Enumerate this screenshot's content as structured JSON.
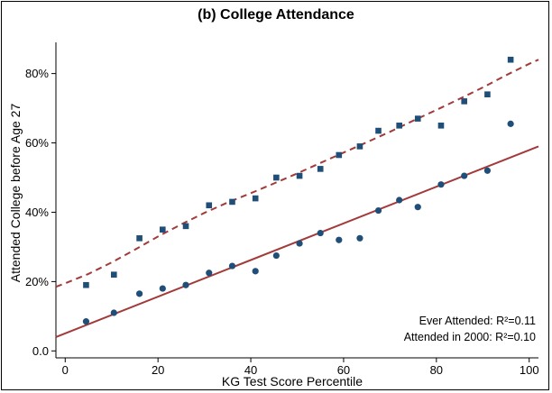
{
  "chart_data": {
    "type": "scatter",
    "title": "(b) College Attendance",
    "xlabel": "KG Test Score Percentile",
    "ylabel": "Attended College before Age 27",
    "xlim": [
      -2,
      102
    ],
    "ylim": [
      -0.02,
      0.89
    ],
    "xticks": [
      0,
      20,
      40,
      60,
      80,
      100
    ],
    "xtick_labels": [
      "0",
      "20",
      "40",
      "60",
      "80",
      "100"
    ],
    "yticks": [
      0.0,
      0.2,
      0.4,
      0.6,
      0.8
    ],
    "ytick_labels": [
      "0.0",
      "20%",
      "40%",
      "60%",
      "80%"
    ],
    "grid": false,
    "series": [
      {
        "marker": "square",
        "color": "#1f4e79",
        "x": [
          4.5,
          10.5,
          16,
          21,
          26,
          31,
          36,
          41,
          45.5,
          50.5,
          55,
          59,
          63.5,
          67.5,
          72,
          76,
          81,
          86,
          91,
          96
        ],
        "y": [
          0.19,
          0.22,
          0.325,
          0.35,
          0.36,
          0.42,
          0.43,
          0.44,
          0.5,
          0.505,
          0.525,
          0.565,
          0.59,
          0.635,
          0.65,
          0.67,
          0.65,
          0.72,
          0.74,
          0.84
        ]
      },
      {
        "marker": "circle",
        "color": "#1f4e79",
        "x": [
          4.5,
          10.5,
          16,
          21,
          26,
          31,
          36,
          41,
          45.5,
          50.5,
          55,
          59,
          63.5,
          67.5,
          72,
          76,
          81,
          86,
          91,
          96
        ],
        "y": [
          0.085,
          0.11,
          0.165,
          0.18,
          0.19,
          0.225,
          0.245,
          0.23,
          0.275,
          0.31,
          0.34,
          0.32,
          0.325,
          0.405,
          0.435,
          0.415,
          0.48,
          0.505,
          0.52,
          0.655
        ]
      }
    ],
    "fits": [
      {
        "style": "dashed",
        "color": "#a33a3a",
        "x": [
          -2,
          0,
          5,
          10,
          15,
          20,
          25,
          30,
          35,
          40,
          45,
          50,
          55,
          60,
          65,
          70,
          75,
          80,
          85,
          90,
          95,
          100,
          102
        ],
        "y": [
          0.185,
          0.195,
          0.222,
          0.255,
          0.292,
          0.33,
          0.365,
          0.398,
          0.428,
          0.455,
          0.483,
          0.512,
          0.542,
          0.572,
          0.602,
          0.632,
          0.664,
          0.695,
          0.727,
          0.76,
          0.795,
          0.828,
          0.84
        ]
      },
      {
        "style": "solid",
        "color": "#a33a3a",
        "x": [
          -2,
          102
        ],
        "y": [
          0.04,
          0.59
        ]
      }
    ],
    "annotations": [
      "Ever Attended: R²=0.11",
      "Attended in 2000: R²=0.10"
    ]
  }
}
